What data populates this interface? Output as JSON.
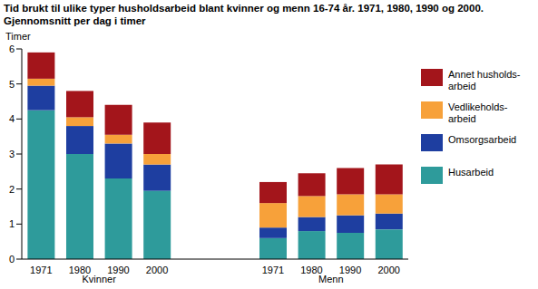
{
  "chart_data": {
    "type": "bar",
    "title": "Tid brukt til ulike typer husholdsarbeid blant kvinner og menn 16-74 år. 1971, 1980, 1990 og 2000. Gjennomsnitt per dag i timer",
    "y_label": "Timer",
    "stacked": true,
    "legend": "right",
    "grid": false,
    "categories": [
      "1971",
      "1980",
      "1990",
      "2000",
      null,
      null,
      "1971",
      "1980",
      "1990",
      "2000"
    ],
    "groups": [
      "Kvinner",
      "Menn"
    ],
    "ylim": [
      0,
      6
    ],
    "yticks": [
      0,
      1,
      2,
      3,
      4,
      5,
      6
    ],
    "series": [
      {
        "name": "Husarbeid",
        "color": "#2e9b9b",
        "values": [
          4.25,
          3.0,
          2.3,
          1.95,
          null,
          null,
          0.6,
          0.8,
          0.75,
          0.85
        ]
      },
      {
        "name": "Omsorgsarbeid",
        "color": "#1e3ea0",
        "values": [
          0.7,
          0.8,
          1.0,
          0.75,
          null,
          null,
          0.3,
          0.4,
          0.5,
          0.45
        ]
      },
      {
        "name": "Vedlikeholds-arbeid",
        "color": "#f7a13a",
        "values": [
          0.2,
          0.25,
          0.25,
          0.3,
          null,
          null,
          0.7,
          0.6,
          0.6,
          0.55
        ]
      },
      {
        "name": "Annet husholds-arbeid",
        "color": "#a3151b",
        "values": [
          0.75,
          0.75,
          0.85,
          0.9,
          null,
          null,
          0.6,
          0.65,
          0.75,
          0.85
        ]
      }
    ]
  }
}
